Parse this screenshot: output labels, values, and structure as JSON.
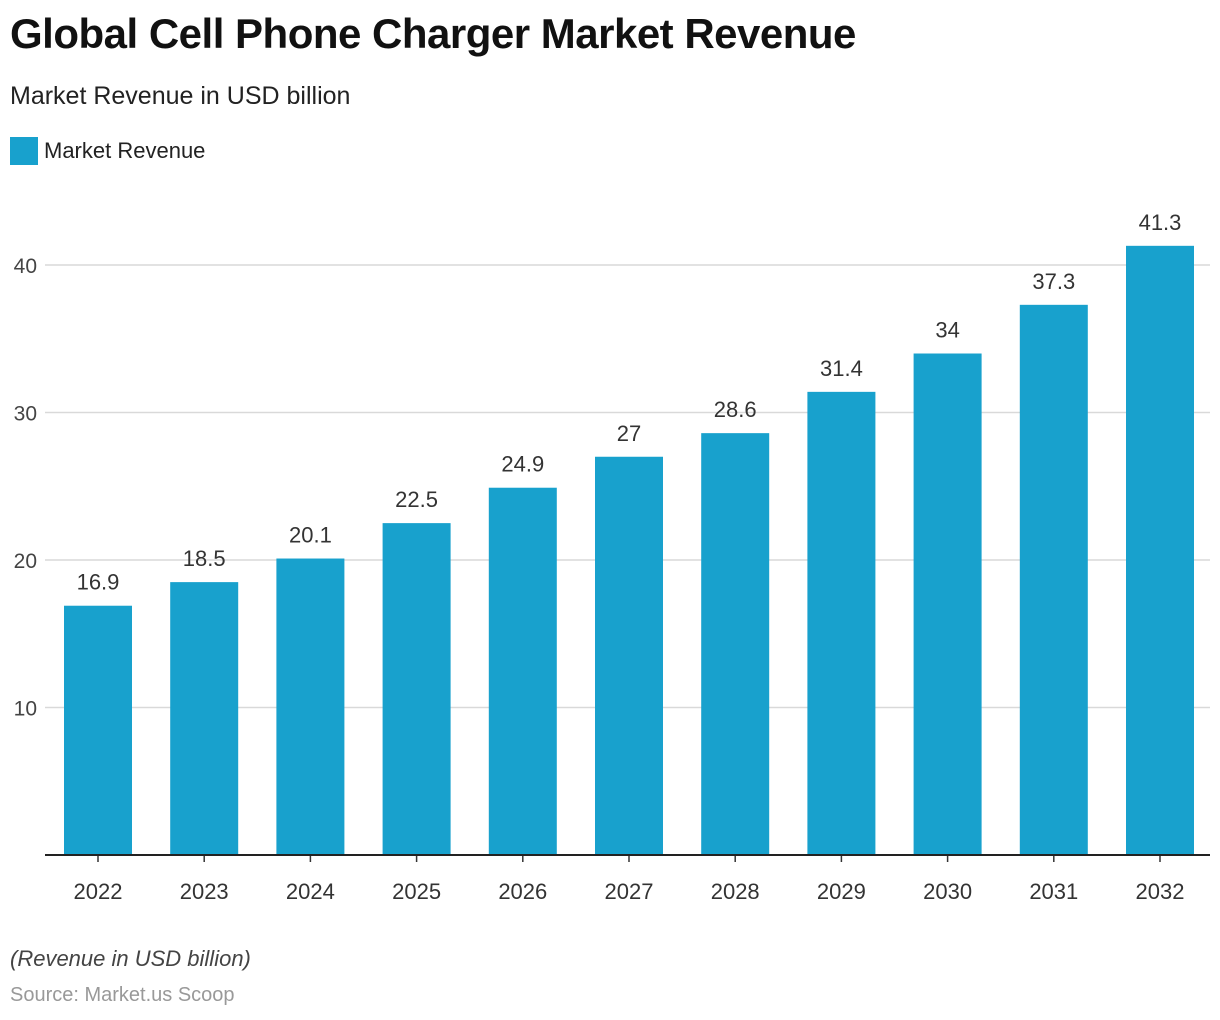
{
  "chart_data": {
    "type": "bar",
    "title": "Global Cell Phone Charger Market Revenue",
    "subtitle": "Market Revenue in USD billion",
    "categories": [
      "2022",
      "2023",
      "2024",
      "2025",
      "2026",
      "2027",
      "2028",
      "2029",
      "2030",
      "2031",
      "2032"
    ],
    "series": [
      {
        "name": "Market Revenue",
        "values": [
          16.9,
          18.5,
          20.1,
          22.5,
          24.9,
          27,
          28.6,
          31.4,
          34,
          37.3,
          41.3
        ],
        "color": "#18a1cd"
      }
    ],
    "yticks": [
      10,
      20,
      30,
      40
    ],
    "ylim": [
      0,
      45
    ],
    "grid": true,
    "legend": "top-left",
    "data_labels": true
  },
  "footer": {
    "note": "(Revenue in USD billion)",
    "source": "Source: Market.us Scoop"
  }
}
